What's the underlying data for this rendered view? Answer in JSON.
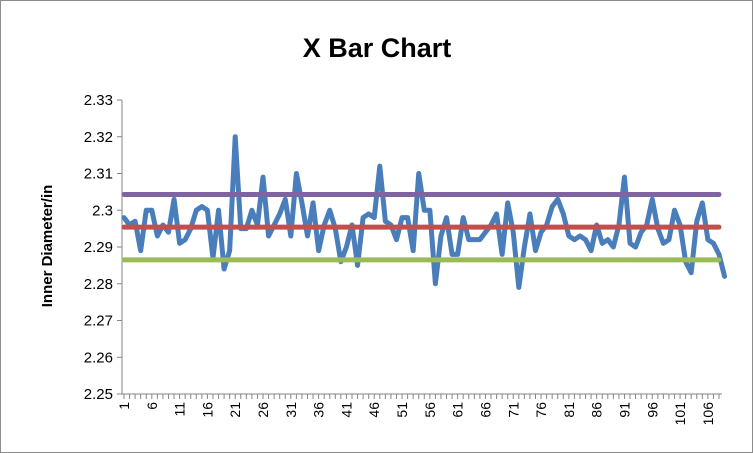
{
  "chart_data": {
    "type": "line",
    "title": "X Bar Chart",
    "xlabel": "",
    "ylabel": "Inner Diameter/in",
    "ylim": [
      2.25,
      2.33
    ],
    "yticks": [
      "2.25",
      "2.26",
      "2.27",
      "2.28",
      "2.29",
      "2.3",
      "2.31",
      "2.32",
      "2.33"
    ],
    "x_range": [
      1,
      108
    ],
    "xtick_labels": [
      "1",
      "6",
      "11",
      "16",
      "21",
      "26",
      "31",
      "36",
      "41",
      "46",
      "51",
      "56",
      "61",
      "66",
      "71",
      "76",
      "81",
      "86",
      "91",
      "96",
      "101",
      "106"
    ],
    "grid": false,
    "legend": "none",
    "series": [
      {
        "color": "#4a7ebb",
        "values": [
          2.298,
          2.296,
          2.297,
          2.289,
          2.3,
          2.3,
          2.293,
          2.296,
          2.294,
          2.303,
          2.291,
          2.292,
          2.295,
          2.3,
          2.301,
          2.3,
          2.287,
          2.3,
          2.284,
          2.289,
          2.32,
          2.295,
          2.295,
          2.3,
          2.296,
          2.309,
          2.293,
          2.296,
          2.299,
          2.303,
          2.293,
          2.31,
          2.302,
          2.293,
          2.302,
          2.289,
          2.296,
          2.3,
          2.295,
          2.286,
          2.29,
          2.296,
          2.285,
          2.298,
          2.299,
          2.298,
          2.312,
          2.297,
          2.296,
          2.292,
          2.298,
          2.298,
          2.289,
          2.31,
          2.3,
          2.3,
          2.28,
          2.293,
          2.298,
          2.288,
          2.288,
          2.298,
          2.292,
          2.292,
          2.292,
          2.294,
          2.296,
          2.299,
          2.288,
          2.302,
          2.294,
          2.279,
          2.29,
          2.299,
          2.289,
          2.294,
          2.296,
          2.301,
          2.303,
          2.299,
          2.293,
          2.292,
          2.293,
          2.292,
          2.289,
          2.296,
          2.291,
          2.292,
          2.29,
          2.296,
          2.309,
          2.291,
          2.29,
          2.294,
          2.296,
          2.303,
          2.295,
          2.291,
          2.292,
          2.3,
          2.296,
          2.286,
          2.283,
          2.297,
          2.302,
          2.292,
          2.291,
          2.288,
          2.282
        ]
      },
      {
        "color": "#8064a2",
        "values": [
          2.3043,
          2.3043
        ]
      },
      {
        "color": "#c0504d",
        "values": [
          2.2954,
          2.2954
        ]
      },
      {
        "color": "#9bbb59",
        "values": [
          2.2865,
          2.2865
        ]
      }
    ]
  }
}
